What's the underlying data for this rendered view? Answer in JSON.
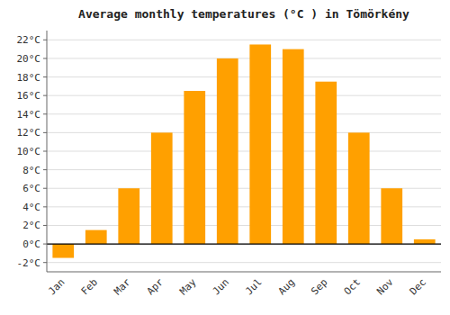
{
  "chart_data": {
    "type": "bar",
    "title": "Average monthly temperatures (°C ) in Tömörkény",
    "categories": [
      "Jan",
      "Feb",
      "Mar",
      "Apr",
      "May",
      "Jun",
      "Jul",
      "Aug",
      "Sep",
      "Oct",
      "Nov",
      "Dec"
    ],
    "values": [
      -1.5,
      1.5,
      6.0,
      12.0,
      16.5,
      20.0,
      21.5,
      21.0,
      17.5,
      12.0,
      6.0,
      0.5
    ],
    "color": "#FFA000",
    "ylim": [
      -3,
      23
    ],
    "yticks": [
      {
        "value": -2,
        "label": "-2°C"
      },
      {
        "value": 0,
        "label": "0°C"
      },
      {
        "value": 2,
        "label": "2°C"
      },
      {
        "value": 4,
        "label": "4°C"
      },
      {
        "value": 6,
        "label": "6°C"
      },
      {
        "value": 8,
        "label": "8°C"
      },
      {
        "value": 10,
        "label": "10°C"
      },
      {
        "value": 12,
        "label": "12°C"
      },
      {
        "value": 14,
        "label": "14°C"
      },
      {
        "value": 16,
        "label": "16°C"
      },
      {
        "value": 18,
        "label": "18°C"
      },
      {
        "value": 20,
        "label": "20°C"
      },
      {
        "value": 22,
        "label": "22°C"
      }
    ],
    "grid": true
  }
}
